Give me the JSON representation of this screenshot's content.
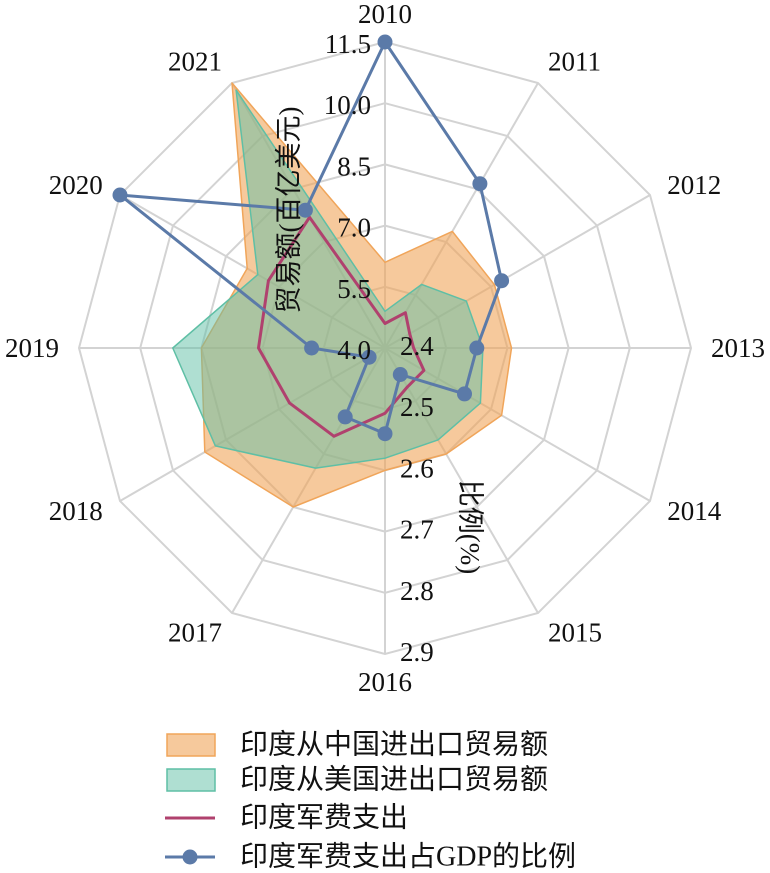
{
  "chart_data": {
    "type": "area",
    "projection": "radar",
    "categories": [
      "2010",
      "2011",
      "2012",
      "2013",
      "2014",
      "2015",
      "2016",
      "2017",
      "2018",
      "2019",
      "2020",
      "2021"
    ],
    "series": [
      {
        "name": "印度从中国进出口贸易额",
        "axis": 0,
        "filled": true,
        "markers": false,
        "color": "#f0a55a",
        "values": [
          6.1,
          7.3,
          7.1,
          7.1,
          7.3,
          7.0,
          7.0,
          8.5,
          9.1,
          8.5,
          7.9,
          11.5
        ]
      },
      {
        "name": "印度从美国进出口贸易额",
        "axis": 0,
        "filled": true,
        "markers": false,
        "color": "#5fbfa5",
        "values": [
          4.9,
          5.8,
          6.3,
          6.4,
          6.7,
          6.6,
          6.7,
          7.4,
          8.8,
          9.2,
          7.6,
          11.3
        ]
      },
      {
        "name": "印度军费支出",
        "axis": 0,
        "filled": false,
        "markers": false,
        "color": "#b0416e",
        "values": [
          4.6,
          5.0,
          4.7,
          4.7,
          5.1,
          5.1,
          5.6,
          6.5,
          6.7,
          7.1,
          7.3,
          7.7
        ]
      },
      {
        "name": "印度军费支出占GDP的比例",
        "axis": 1,
        "filled": false,
        "markers": true,
        "color": "#5b7aa8",
        "values": [
          2.9,
          2.71,
          2.62,
          2.55,
          2.55,
          2.45,
          2.54,
          2.53,
          2.43,
          2.52,
          2.9,
          2.66
        ]
      }
    ],
    "axes": [
      {
        "label": "贸易额(百亿美元)",
        "range": [
          4.0,
          11.5
        ],
        "ticks": [
          "4.0",
          "5.5",
          "7.0",
          "8.5",
          "10.0",
          "11.5"
        ]
      },
      {
        "label": "比例(%)",
        "range": [
          2.4,
          2.9
        ],
        "ticks": [
          "2.4",
          "2.5",
          "2.6",
          "2.7",
          "2.8",
          "2.9"
        ]
      }
    ],
    "grid": true,
    "legend": "bottom",
    "colors": {
      "grid": "#d3d3d3",
      "text": "#111111"
    }
  }
}
